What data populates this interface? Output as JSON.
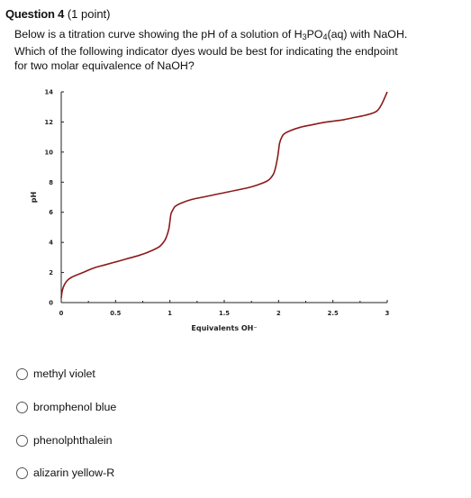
{
  "question": {
    "title": "Question 4",
    "points": "(1 point)",
    "line1_before": "Below is a titration curve showing the pH of a solution of H",
    "line1_sub1": "3",
    "line1_mid": "PO",
    "line1_sub2": "4",
    "line1_after": "(aq) with NaOH.",
    "line2": "Which of the following indicator dyes would be best for indicating the endpoint",
    "line3": "for two molar equivalence of NaOH?"
  },
  "options": [
    {
      "label": "methyl violet"
    },
    {
      "label": "bromphenol blue"
    },
    {
      "label": "phenolphthalein"
    },
    {
      "label": "alizarin yellow-R"
    }
  ],
  "colors": {
    "curve": "#8b1a1a",
    "axis": "#222222"
  },
  "chart_data": {
    "type": "line",
    "xlabel": "Equivalents OH⁻",
    "ylabel": "pH",
    "xlim": [
      0,
      3
    ],
    "ylim": [
      0,
      14
    ],
    "x_ticks": [
      "0",
      "0.5",
      "1",
      "1.5",
      "2",
      "2.5",
      "3"
    ],
    "y_ticks": [
      "0",
      "2",
      "4",
      "6",
      "8",
      "10",
      "12",
      "14"
    ],
    "grid": false,
    "series": [
      {
        "x": [
          0.0,
          0.01,
          0.03,
          0.06,
          0.1,
          0.2,
          0.3,
          0.4,
          0.5,
          0.6,
          0.7,
          0.8,
          0.9,
          0.95,
          0.97,
          0.99,
          1.0,
          1.01,
          1.03,
          1.05,
          1.1,
          1.2,
          1.3,
          1.4,
          1.5,
          1.6,
          1.7,
          1.8,
          1.9,
          1.95,
          1.97,
          1.99,
          2.0,
          2.01,
          2.03,
          2.05,
          2.1,
          2.2,
          2.3,
          2.4,
          2.5,
          2.6,
          2.7,
          2.8,
          2.9,
          2.95,
          3.0
        ],
        "y": [
          0.3,
          0.8,
          1.2,
          1.5,
          1.7,
          2.0,
          2.3,
          2.5,
          2.7,
          2.9,
          3.1,
          3.35,
          3.7,
          4.1,
          4.4,
          4.9,
          5.4,
          5.9,
          6.2,
          6.4,
          6.6,
          6.85,
          7.0,
          7.15,
          7.3,
          7.45,
          7.6,
          7.8,
          8.1,
          8.5,
          8.9,
          9.6,
          10.1,
          10.6,
          11.0,
          11.2,
          11.4,
          11.65,
          11.8,
          11.95,
          12.05,
          12.15,
          12.3,
          12.45,
          12.7,
          13.2,
          14.0
        ]
      }
    ]
  }
}
